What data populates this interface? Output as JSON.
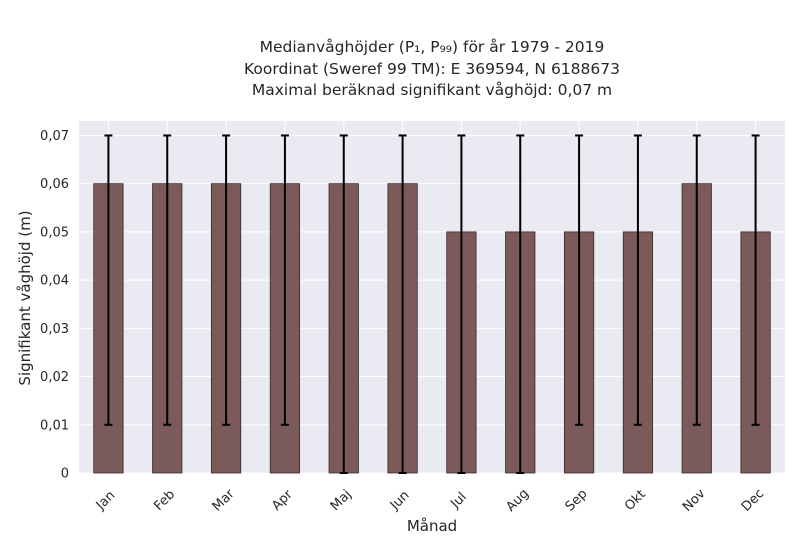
{
  "chart_data": {
    "type": "bar",
    "title_lines": [
      "Medianvåghöjder (P₁, P₉₉) för år 1979 - 2019",
      "Koordinat (Sweref 99 TM): E 369594, N 6188673",
      "Maximal beräknad signifikant våghöjd: 0,07 m"
    ],
    "xlabel": "Månad",
    "ylabel": "Signifikant våghöjd (m)",
    "categories": [
      "Jan",
      "Feb",
      "Mar",
      "Apr",
      "Maj",
      "Jun",
      "Jul",
      "Aug",
      "Sep",
      "Okt",
      "Nov",
      "Dec"
    ],
    "values": [
      0.06,
      0.06,
      0.06,
      0.06,
      0.06,
      0.06,
      0.05,
      0.05,
      0.05,
      0.05,
      0.06,
      0.05
    ],
    "error_low": [
      0.01,
      0.01,
      0.01,
      0.01,
      0.0,
      0.0,
      0.0,
      0.0,
      0.01,
      0.01,
      0.01,
      0.01
    ],
    "error_high": [
      0.07,
      0.07,
      0.07,
      0.07,
      0.07,
      0.07,
      0.07,
      0.07,
      0.07,
      0.07,
      0.07,
      0.07
    ],
    "ylim": [
      0,
      0.073
    ],
    "yticks": [
      0,
      0.01,
      0.02,
      0.03,
      0.04,
      0.05,
      0.06,
      0.07
    ],
    "ytick_labels": [
      "0",
      "0,01",
      "0,02",
      "0,03",
      "0,04",
      "0,05",
      "0,06",
      "0,07"
    ],
    "grid": true,
    "colors": {
      "bar": "#7b5a5a",
      "bar_edge": "#3a2a2a",
      "error": "#000000",
      "background": "#eaeaf2",
      "grid": "#ffffff"
    }
  }
}
